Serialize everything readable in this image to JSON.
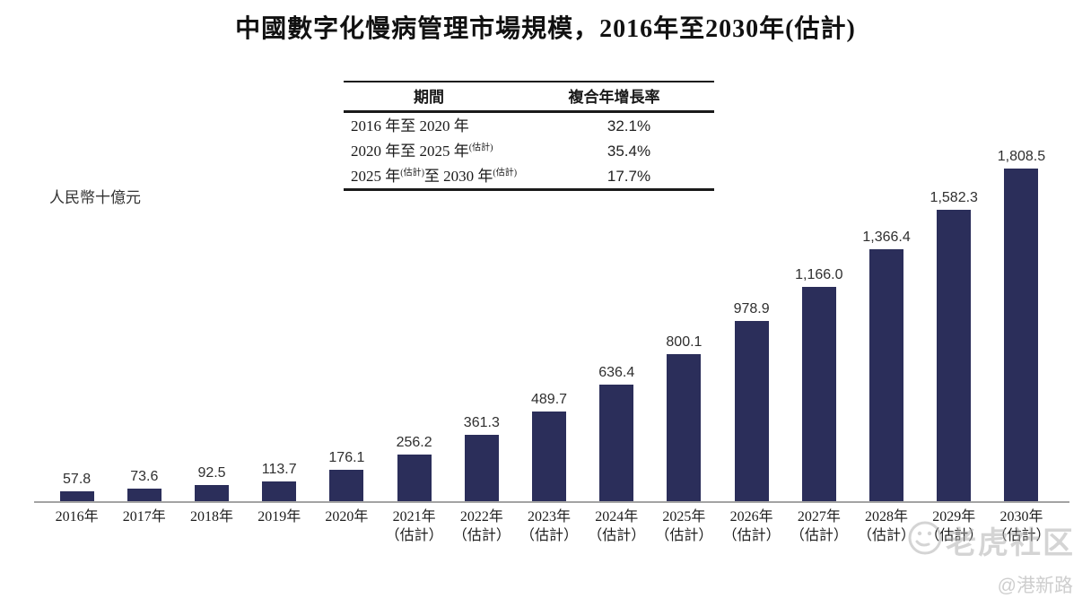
{
  "title": "中國數字化慢病管理市場規模，2016年至2030年(估計)",
  "cagr_table": {
    "headers": [
      "期間",
      "複合年增長率"
    ],
    "rows": [
      {
        "period": [
          {
            "text": "2016 年至 2020 年",
            "sup": false
          }
        ],
        "cagr": "32.1%"
      },
      {
        "period": [
          {
            "text": "2020 年至 2025 年",
            "sup": false
          },
          {
            "text": "(估計)",
            "sup": true
          }
        ],
        "cagr": "35.4%"
      },
      {
        "period": [
          {
            "text": "2025 年",
            "sup": false
          },
          {
            "text": "(估計)",
            "sup": true
          },
          {
            "text": "至 2030 年",
            "sup": false
          },
          {
            "text": "(估計)",
            "sup": true
          }
        ],
        "cagr": "17.7%"
      }
    ]
  },
  "unit_label": "人民幣十億元",
  "chart_data": {
    "type": "bar",
    "title": "中國數字化慢病管理市場規模，2016年至2030年(估計)",
    "ylabel": "人民幣十億元",
    "ylim": [
      0,
      1808.5
    ],
    "grid": false,
    "legend": false,
    "bar_color": "#2b2e5a",
    "axis_color": "#a3a3a3",
    "categories": [
      "2016年",
      "2017年",
      "2018年",
      "2019年",
      "2020年",
      "2021年",
      "2022年",
      "2023年",
      "2024年",
      "2025年",
      "2026年",
      "2027年",
      "2028年",
      "2029年",
      "2030年"
    ],
    "estimate_note": "（估計）",
    "estimated_from_index": 5,
    "values": [
      57.8,
      73.6,
      92.5,
      113.7,
      176.1,
      256.2,
      361.3,
      489.7,
      636.4,
      800.1,
      978.9,
      1166.0,
      1366.4,
      1582.3,
      1808.5
    ],
    "value_labels": [
      "57.8",
      "73.6",
      "92.5",
      "113.7",
      "176.1",
      "256.2",
      "361.3",
      "489.7",
      "636.4",
      "800.1",
      "978.9",
      "1,166.0",
      "1,366.4",
      "1,582.3",
      "1,808.5"
    ]
  },
  "watermark": {
    "community": "老虎社区",
    "handle": "@港新路"
  }
}
